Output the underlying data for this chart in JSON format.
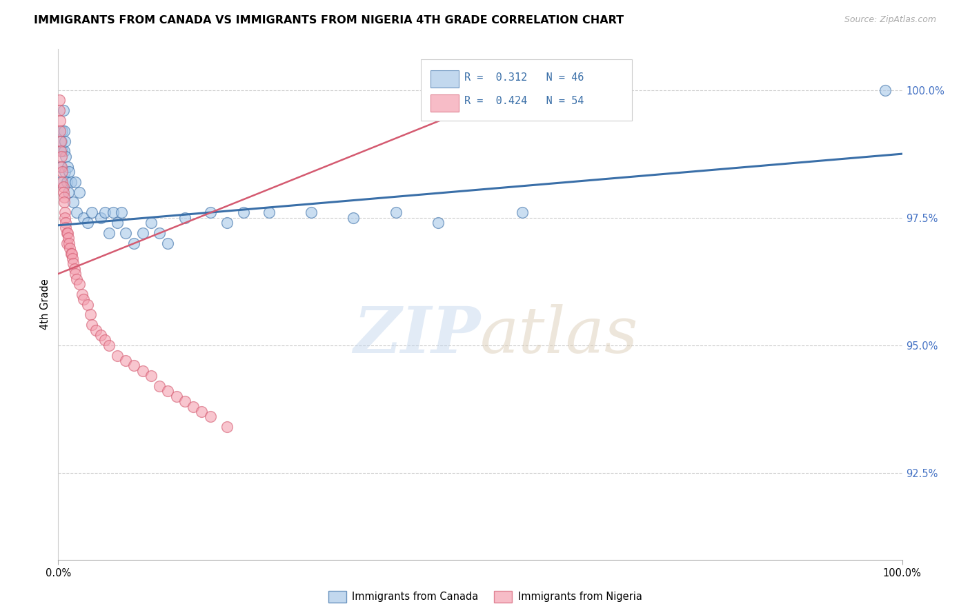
{
  "title": "IMMIGRANTS FROM CANADA VS IMMIGRANTS FROM NIGERIA 4TH GRADE CORRELATION CHART",
  "source": "Source: ZipAtlas.com",
  "ylabel": "4th Grade",
  "ytick_labels": [
    "92.5%",
    "95.0%",
    "97.5%",
    "100.0%"
  ],
  "ytick_values": [
    0.925,
    0.95,
    0.975,
    1.0
  ],
  "xmin": 0.0,
  "xmax": 1.0,
  "ymin": 0.908,
  "ymax": 1.008,
  "canada_R": "0.312",
  "canada_N": "46",
  "nigeria_R": "0.424",
  "nigeria_N": "54",
  "canada_color": "#a8c8e8",
  "canada_line_color": "#3a6fa8",
  "nigeria_color": "#f4a0b0",
  "nigeria_line_color": "#d45a70",
  "watermark_zip": "ZIP",
  "watermark_atlas": "atlas",
  "canada_scatter_x": [
    0.002,
    0.003,
    0.004,
    0.005,
    0.005,
    0.006,
    0.007,
    0.007,
    0.008,
    0.008,
    0.009,
    0.01,
    0.011,
    0.012,
    0.013,
    0.015,
    0.018,
    0.02,
    0.022,
    0.025,
    0.03,
    0.035,
    0.04,
    0.05,
    0.055,
    0.06,
    0.065,
    0.07,
    0.075,
    0.08,
    0.09,
    0.1,
    0.11,
    0.12,
    0.13,
    0.15,
    0.18,
    0.2,
    0.22,
    0.25,
    0.3,
    0.35,
    0.4,
    0.45,
    0.55,
    0.98
  ],
  "canada_scatter_y": [
    0.982,
    0.985,
    0.99,
    0.992,
    0.988,
    0.996,
    0.992,
    0.988,
    0.99,
    0.984,
    0.987,
    0.982,
    0.985,
    0.98,
    0.984,
    0.982,
    0.978,
    0.982,
    0.976,
    0.98,
    0.975,
    0.974,
    0.976,
    0.975,
    0.976,
    0.972,
    0.976,
    0.974,
    0.976,
    0.972,
    0.97,
    0.972,
    0.974,
    0.972,
    0.97,
    0.975,
    0.976,
    0.974,
    0.976,
    0.976,
    0.976,
    0.975,
    0.976,
    0.974,
    0.976,
    1.0
  ],
  "nigeria_scatter_x": [
    0.001,
    0.001,
    0.002,
    0.002,
    0.003,
    0.003,
    0.004,
    0.004,
    0.005,
    0.005,
    0.006,
    0.006,
    0.007,
    0.007,
    0.008,
    0.008,
    0.009,
    0.009,
    0.01,
    0.01,
    0.011,
    0.012,
    0.013,
    0.014,
    0.015,
    0.016,
    0.017,
    0.018,
    0.019,
    0.02,
    0.022,
    0.025,
    0.028,
    0.03,
    0.035,
    0.038,
    0.04,
    0.045,
    0.05,
    0.055,
    0.06,
    0.07,
    0.08,
    0.09,
    0.1,
    0.11,
    0.12,
    0.13,
    0.14,
    0.15,
    0.16,
    0.17,
    0.18,
    0.2
  ],
  "nigeria_scatter_y": [
    0.998,
    0.996,
    0.994,
    0.992,
    0.99,
    0.988,
    0.987,
    0.985,
    0.984,
    0.982,
    0.981,
    0.98,
    0.979,
    0.978,
    0.976,
    0.975,
    0.974,
    0.973,
    0.972,
    0.97,
    0.972,
    0.971,
    0.97,
    0.969,
    0.968,
    0.968,
    0.967,
    0.966,
    0.965,
    0.964,
    0.963,
    0.962,
    0.96,
    0.959,
    0.958,
    0.956,
    0.954,
    0.953,
    0.952,
    0.951,
    0.95,
    0.948,
    0.947,
    0.946,
    0.945,
    0.944,
    0.942,
    0.941,
    0.94,
    0.939,
    0.938,
    0.937,
    0.936,
    0.934
  ]
}
